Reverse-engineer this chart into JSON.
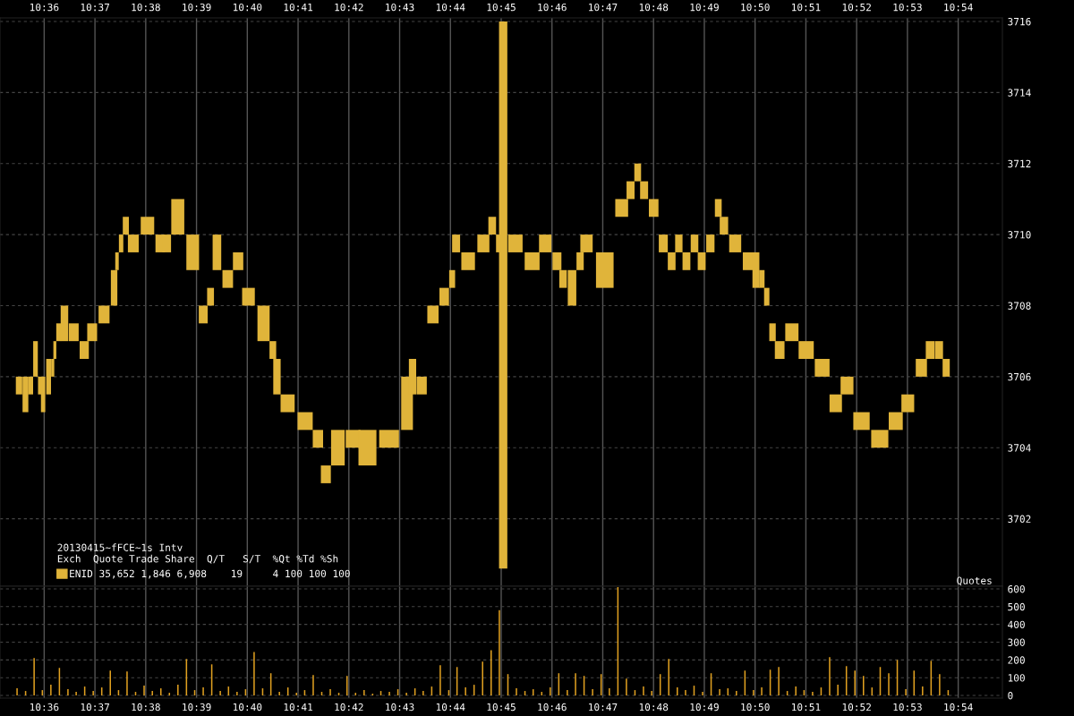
{
  "chart_data": [
    {
      "type": "bar",
      "legend": "bottom left",
      "grid": true,
      "legend_title": "20130415~fFCE~1s Intv\nExch  Quote Trade Share  Q/T   S/T  %Qt %Td %Sh",
      "xlim": [
        10.5855,
        10.9145
      ],
      "ylim": [
        3700.1,
        3716.1
      ],
      "xticks": [
        {
          "value": 10.6,
          "label": "10:36"
        },
        {
          "value": 10.616667,
          "label": "10:37"
        },
        {
          "value": 10.633333,
          "label": "10:38"
        },
        {
          "value": 10.65,
          "label": "10:39"
        },
        {
          "value": 10.666667,
          "label": "10:40"
        },
        {
          "value": 10.683333,
          "label": "10:41"
        },
        {
          "value": 10.7,
          "label": "10:42"
        },
        {
          "value": 10.716667,
          "label": "10:43"
        },
        {
          "value": 10.733333,
          "label": "10:44"
        },
        {
          "value": 10.75,
          "label": "10:45"
        },
        {
          "value": 10.766667,
          "label": "10:46"
        },
        {
          "value": 10.783333,
          "label": "10:47"
        },
        {
          "value": 10.8,
          "label": "10:48"
        },
        {
          "value": 10.816667,
          "label": "10:49"
        },
        {
          "value": 10.833333,
          "label": "10:50"
        },
        {
          "value": 10.85,
          "label": "10:51"
        },
        {
          "value": 10.866667,
          "label": "10:52"
        },
        {
          "value": 10.883333,
          "label": "10:53"
        },
        {
          "value": 10.9,
          "label": "10:54"
        }
      ],
      "yticks": [
        3702,
        3704,
        3706,
        3708,
        3710,
        3712,
        3714,
        3716
      ],
      "series": [
        {
          "name": "ENID 35,652 1,846 6,908    19     4 100 100 100",
          "color": "#e0b43a",
          "x": [
            10.59175,
            10.59385,
            10.59555,
            10.59715,
            10.5986,
            10.59965,
            10.60145,
            10.6028,
            10.6035,
            10.60475,
            10.60665,
            10.6097,
            10.61315,
            10.61575,
            10.61965,
            10.62295,
            10.6239,
            10.62525,
            10.6268,
            10.62925,
            10.6339,
            10.6381,
            10.6402,
            10.64385,
            10.64875,
            10.6522,
            10.6546,
            10.6567,
            10.66025,
            10.66365,
            10.66705,
            10.672,
            10.67505,
            10.6764,
            10.6799,
            10.68565,
            10.68985,
            10.69245,
            10.6964,
            10.7014,
            10.7061,
            10.7132,
            10.7191,
            10.7209,
            10.7239,
            10.7276,
            10.7313,
            10.7339,
            10.7352,
            10.73915,
            10.74415,
            10.74705,
            10.7492,
            10.75065,
            10.75465,
            10.76015,
            10.76445,
            10.7683,
            10.7703,
            10.77325,
            10.7759,
            10.778,
            10.784,
            10.78955,
            10.79245,
            10.7948,
            10.7969,
            10.80005,
            10.8032,
            10.80595,
            10.8083,
            10.8108,
            10.81345,
            10.8158,
            10.81865,
            10.82125,
            10.8231,
            10.8268,
            10.831,
            10.8336,
            10.83555,
            10.83715,
            10.83905,
            10.8414,
            10.8454,
            10.8501,
            10.85535,
            10.8598,
            10.8635,
            10.86825,
            10.87425,
            10.8795,
            10.88345,
            10.8879,
            10.8908,
            10.8937,
            10.89605
          ],
          "base": [
            3705.5,
            3705,
            3705.5,
            3706,
            3705.5,
            3705,
            3705.5,
            3706,
            3706.5,
            3707,
            3707,
            3707,
            3706.5,
            3707,
            3707.5,
            3708,
            3709,
            3709.5,
            3710,
            3709.5,
            3710,
            3709.5,
            3709.5,
            3710,
            3709,
            3707.5,
            3708,
            3709,
            3708.5,
            3709,
            3708,
            3707,
            3706.5,
            3705.5,
            3705,
            3704.5,
            3704,
            3703,
            3703.5,
            3704,
            3703.5,
            3704,
            3704.5,
            3705.5,
            3705.5,
            3707.5,
            3708,
            3708.5,
            3709.5,
            3709,
            3709.5,
            3710,
            3709.5,
            3700.6,
            3709.5,
            3709,
            3709.5,
            3709,
            3708.5,
            3708,
            3709,
            3709.5,
            3708.5,
            3710.5,
            3711,
            3711.5,
            3711,
            3710.5,
            3709.5,
            3709,
            3709.5,
            3709,
            3709.5,
            3709,
            3709.5,
            3710.5,
            3710,
            3709.5,
            3709,
            3708.5,
            3708.5,
            3708,
            3707,
            3706.5,
            3707,
            3706.5,
            3706,
            3705,
            3705.5,
            3704.5,
            3704,
            3704.5,
            3705,
            3706,
            3706.5,
            3706.5,
            3706
          ],
          "values": [
            0.5,
            1,
            0.5,
            1,
            0.5,
            1,
            1,
            0.5,
            0.5,
            0.5,
            1,
            0.5,
            0.5,
            0.5,
            0.5,
            1,
            0.5,
            0.5,
            0.5,
            0.5,
            0.5,
            0.5,
            0.5,
            1,
            1,
            0.5,
            0.5,
            1,
            0.5,
            0.5,
            0.5,
            1,
            0.5,
            1,
            0.5,
            0.5,
            0.5,
            0.5,
            1,
            0.5,
            1,
            0.5,
            1.5,
            1,
            0.5,
            0.5,
            0.5,
            0.5,
            0.5,
            0.5,
            0.5,
            0.5,
            0.5,
            15.4,
            0.5,
            0.5,
            0.5,
            0.5,
            0.5,
            1,
            0.5,
            0.5,
            1,
            0.5,
            0.5,
            0.5,
            0.5,
            0.5,
            0.5,
            0.5,
            0.5,
            0.5,
            0.5,
            0.5,
            0.5,
            0.5,
            0.5,
            0.5,
            0.5,
            1,
            0.5,
            0.5,
            0.5,
            0.5,
            0.5,
            0.5,
            0.5,
            0.5,
            0.5,
            0.5,
            0.5,
            0.5,
            0.5,
            0.5,
            0.5,
            0.5,
            0.5
          ]
        }
      ]
    },
    {
      "type": "bar",
      "ylabel": "Quotes",
      "grid": true,
      "xlim": [
        10.5855,
        10.9145
      ],
      "ylim": [
        -15,
        615
      ],
      "xticks": [
        {
          "value": 10.6,
          "label": "10:36"
        },
        {
          "value": 10.616667,
          "label": "10:37"
        },
        {
          "value": 10.633333,
          "label": "10:38"
        },
        {
          "value": 10.65,
          "label": "10:39"
        },
        {
          "value": 10.666667,
          "label": "10:40"
        },
        {
          "value": 10.683333,
          "label": "10:41"
        },
        {
          "value": 10.7,
          "label": "10:42"
        },
        {
          "value": 10.716667,
          "label": "10:43"
        },
        {
          "value": 10.733333,
          "label": "10:44"
        },
        {
          "value": 10.75,
          "label": "10:45"
        },
        {
          "value": 10.766667,
          "label": "10:46"
        },
        {
          "value": 10.783333,
          "label": "10:47"
        },
        {
          "value": 10.8,
          "label": "10:48"
        },
        {
          "value": 10.816667,
          "label": "10:49"
        },
        {
          "value": 10.833333,
          "label": "10:50"
        },
        {
          "value": 10.85,
          "label": "10:51"
        },
        {
          "value": 10.866667,
          "label": "10:52"
        },
        {
          "value": 10.883333,
          "label": "10:53"
        },
        {
          "value": 10.9,
          "label": "10:54"
        }
      ],
      "yticks": [
        0,
        100,
        200,
        300,
        400,
        500,
        600
      ],
      "series": [
        {
          "color": "#e0a020",
          "x": [
            10.5911,
            10.5939,
            10.5967,
            10.5994,
            10.6022,
            10.605,
            10.6078,
            10.6105,
            10.6133,
            10.6161,
            10.6189,
            10.6217,
            10.6244,
            10.6272,
            10.63,
            10.6328,
            10.6355,
            10.6383,
            10.6411,
            10.6439,
            10.6467,
            10.6494,
            10.6522,
            10.655,
            10.6578,
            10.6605,
            10.6633,
            10.6661,
            10.6689,
            10.6717,
            10.6744,
            10.6772,
            10.68,
            10.6828,
            10.6855,
            10.6883,
            10.6911,
            10.6939,
            10.6967,
            10.6994,
            10.7022,
            10.705,
            10.7078,
            10.7105,
            10.7133,
            10.7161,
            10.7189,
            10.7217,
            10.7244,
            10.7272,
            10.73,
            10.7328,
            10.7355,
            10.7383,
            10.7411,
            10.7439,
            10.7467,
            10.7494,
            10.7522,
            10.755,
            10.7578,
            10.7605,
            10.7633,
            10.7661,
            10.7689,
            10.7717,
            10.7744,
            10.7772,
            10.78,
            10.7828,
            10.7855,
            10.7883,
            10.7911,
            10.7939,
            10.7967,
            10.7994,
            10.8022,
            10.805,
            10.8078,
            10.8105,
            10.8133,
            10.8161,
            10.8189,
            10.8217,
            10.8244,
            10.8272,
            10.83,
            10.8328,
            10.8355,
            10.8383,
            10.8411,
            10.8439,
            10.8467,
            10.8494,
            10.8522,
            10.855,
            10.8578,
            10.8605,
            10.8633,
            10.8661,
            10.8689,
            10.8717,
            10.8744,
            10.8772,
            10.88,
            10.8828,
            10.8855,
            10.8883,
            10.8911,
            10.8939,
            10.8967
          ],
          "values": [
            40,
            25,
            210,
            30,
            60,
            155,
            35,
            20,
            50,
            25,
            45,
            140,
            30,
            135,
            20,
            55,
            25,
            40,
            15,
            60,
            205,
            30,
            45,
            175,
            25,
            50,
            20,
            35,
            245,
            40,
            125,
            20,
            45,
            15,
            30,
            115,
            20,
            35,
            15,
            110,
            15,
            30,
            10,
            25,
            20,
            35,
            15,
            40,
            25,
            50,
            170,
            30,
            160,
            45,
            60,
            190,
            255,
            480,
            120,
            40,
            25,
            35,
            20,
            45,
            125,
            30,
            125,
            110,
            35,
            120,
            40,
            610,
            95,
            30,
            50,
            25,
            120,
            205,
            45,
            30,
            55,
            20,
            125,
            35,
            40,
            25,
            140,
            30,
            45,
            145,
            160,
            25,
            50,
            30,
            20,
            45,
            215,
            60,
            165,
            140,
            110,
            45,
            160,
            125,
            200,
            35,
            140,
            50,
            195,
            120,
            30
          ]
        }
      ]
    }
  ]
}
